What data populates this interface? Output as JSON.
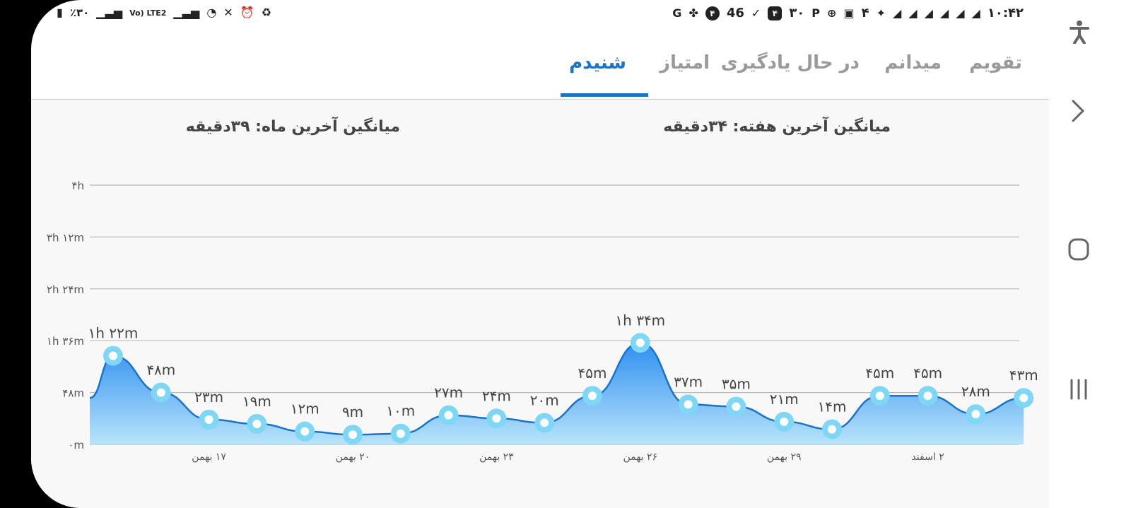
{
  "status_bar": {
    "battery": "٪۳۰",
    "network": "Vo) LTE2",
    "time": "۱۰:۴۲",
    "badge_one": "۴",
    "count_46": "46",
    "badge_two": "۴",
    "count_30": "۳۰",
    "count_4": "۴"
  },
  "tabs": [
    {
      "label": "تقویم"
    },
    {
      "label": "میدانم"
    },
    {
      "label": "در حال یادگیری"
    },
    {
      "label": "امتیاز"
    },
    {
      "label": "شنیدم"
    }
  ],
  "active_tab": "شنیدم",
  "summary": {
    "weekly_avg": "میانگین آخرین هفته: ۳۴دقیقه",
    "monthly_avg": "میانگین آخرین ماه: ۳۹دقیقه"
  },
  "colors": {
    "accent": "#1a73c9",
    "area_top": "#2f8ff0",
    "area_bottom": "#b9e4fb",
    "line": "#1a73c9",
    "marker_ring": "#7fd7f5"
  },
  "chart_data": {
    "type": "area",
    "y_unit": "minutes",
    "ylim": [
      0,
      240
    ],
    "y_ticks": [
      {
        "value": 0,
        "label": "۰m"
      },
      {
        "value": 48,
        "label": "۴۸m"
      },
      {
        "value": 96,
        "label": "۱h ۳۶m"
      },
      {
        "value": 144,
        "label": "۲h ۲۴m"
      },
      {
        "value": 192,
        "label": "۳h ۱۲m"
      },
      {
        "value": 240,
        "label": "۴h"
      }
    ],
    "x_ticks": [
      {
        "index": 2,
        "label": "۱۷ بهمن"
      },
      {
        "index": 5,
        "label": "۲۰ بهمن"
      },
      {
        "index": 8,
        "label": "۲۳ بهمن"
      },
      {
        "index": 11,
        "label": "۲۶ بهمن"
      },
      {
        "index": 14,
        "label": "۲۹ بهمن"
      },
      {
        "index": 17,
        "label": "۲ اسفند"
      }
    ],
    "start_value": 43,
    "points": [
      {
        "value": 82,
        "label": "۱h ۲۲m"
      },
      {
        "value": 48,
        "label": "۴۸m"
      },
      {
        "value": 23,
        "label": "۲۳m"
      },
      {
        "value": 19,
        "label": "۱۹m"
      },
      {
        "value": 12,
        "label": "۱۲m"
      },
      {
        "value": 9,
        "label": "۹m"
      },
      {
        "value": 10,
        "label": "۱۰m"
      },
      {
        "value": 27,
        "label": "۲۷m"
      },
      {
        "value": 24,
        "label": "۲۴m"
      },
      {
        "value": 20,
        "label": "۲۰m"
      },
      {
        "value": 45,
        "label": "۴۵m"
      },
      {
        "value": 94,
        "label": "۱h ۳۴m"
      },
      {
        "value": 37,
        "label": "۳۷m"
      },
      {
        "value": 35,
        "label": "۳۵m"
      },
      {
        "value": 21,
        "label": "۲۱m"
      },
      {
        "value": 14,
        "label": "۱۴m"
      },
      {
        "value": 45,
        "label": "۴۵m"
      },
      {
        "value": 45,
        "label": "۴۵m"
      },
      {
        "value": 28,
        "label": "۲۸m"
      },
      {
        "value": 43,
        "label": "۴۳m"
      }
    ]
  },
  "side_nav": {
    "accessibility_icon": "accessibility-icon",
    "forward_icon": "chevron-right-icon",
    "home_icon": "home-icon",
    "recents_icon": "recents-icon"
  }
}
